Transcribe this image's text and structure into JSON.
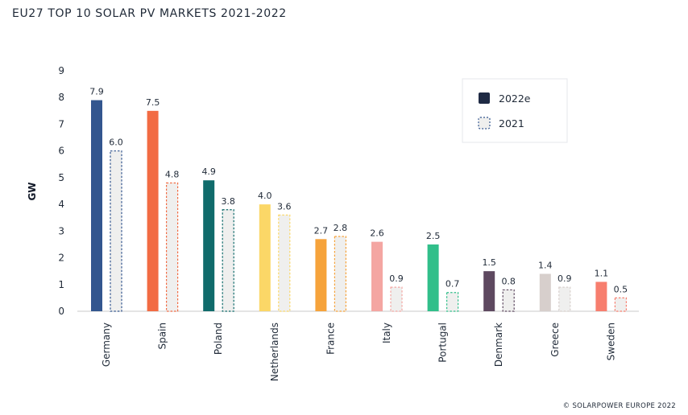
{
  "chart_data": {
    "type": "bar",
    "title": "EU27 TOP 10 SOLAR PV MARKETS 2021-2022",
    "ylabel": "GW",
    "xlabel": "",
    "ylim": [
      0,
      9
    ],
    "yticks": [
      0,
      1,
      2,
      3,
      4,
      5,
      6,
      7,
      8,
      9
    ],
    "grid": false,
    "legend_position": "top-right",
    "categories": [
      "Germany",
      "Spain",
      "Poland",
      "Netherlands",
      "France",
      "Italy",
      "Portugal",
      "Denmark",
      "Greece",
      "Sweden"
    ],
    "series": [
      {
        "name": "2022e",
        "style": "solid",
        "values": [
          7.9,
          7.5,
          4.9,
          4.0,
          2.7,
          2.6,
          2.5,
          1.5,
          1.4,
          1.1
        ]
      },
      {
        "name": "2021",
        "style": "dashed-outline",
        "values": [
          6.0,
          4.8,
          3.8,
          3.6,
          2.8,
          0.9,
          0.7,
          0.8,
          0.9,
          0.5
        ]
      }
    ],
    "value_labels": [
      [
        "7.9",
        "7.5",
        "4.9",
        "4.0",
        "2.7",
        "2.6",
        "2.5",
        "1.5",
        "1.4",
        "1.1"
      ],
      [
        "6.0",
        "4.8",
        "3.8",
        "3.6",
        "2.8",
        "0.9",
        "0.7",
        "0.8",
        "0.9",
        "0.5"
      ]
    ],
    "category_colors": [
      "#33568f",
      "#f26b43",
      "#106b6b",
      "#fbd767",
      "#f6a33b",
      "#f4a6a2",
      "#31bf8a",
      "#5e4960",
      "#d7cfcc",
      "#f77e6e"
    ],
    "legend_colors": {
      "solid": "#1f2a44",
      "dashed": "#33568f"
    },
    "hatched_fill": "#efefee"
  },
  "copyright": "© SOLARPOWER EUROPE 2022"
}
